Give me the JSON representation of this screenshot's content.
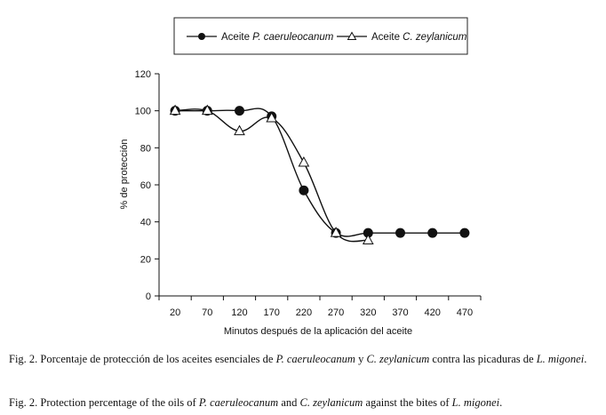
{
  "chart_data": {
    "type": "line",
    "xlabel": "Minutos después de la aplicación del aceite",
    "ylabel": "% de protección",
    "categories": [
      "20",
      "70",
      "120",
      "170",
      "220",
      "270",
      "320",
      "370",
      "420",
      "470"
    ],
    "ylim": [
      0,
      120
    ],
    "yticks": [
      0,
      20,
      40,
      60,
      80,
      100,
      120
    ],
    "grid": false,
    "legend_position": "top",
    "series": [
      {
        "name_prefix": "Aceite ",
        "name_italic": "P. caeruleocanum",
        "marker": "filled-circle",
        "color": "#111111",
        "values": [
          100,
          100,
          100,
          97,
          57,
          34,
          34,
          34,
          34,
          34
        ]
      },
      {
        "name_prefix": "Aceite ",
        "name_italic": "C. zeylanicum",
        "marker": "open-triangle",
        "color": "#111111",
        "values": [
          100,
          100,
          89,
          96,
          72,
          34,
          30,
          null,
          null,
          null
        ]
      }
    ]
  },
  "caption_es": {
    "p1": "Fig. 2. Porcentaje de protección de los aceites esenciales de ",
    "i1": "P. caeruleocanum",
    "p2": " y ",
    "i2": "C. zeylanicum",
    "p3": " contra las picaduras de ",
    "i3": "L. migonei",
    "p4": "."
  },
  "caption_en": {
    "p1": "Fig. 2. Protection percentage of the oils of ",
    "i1": "P. caeruleocanum",
    "p2": " and ",
    "i2": "C. zeylanicum",
    "p3": " against the bites of ",
    "i3": "L. migonei",
    "p4": "."
  }
}
